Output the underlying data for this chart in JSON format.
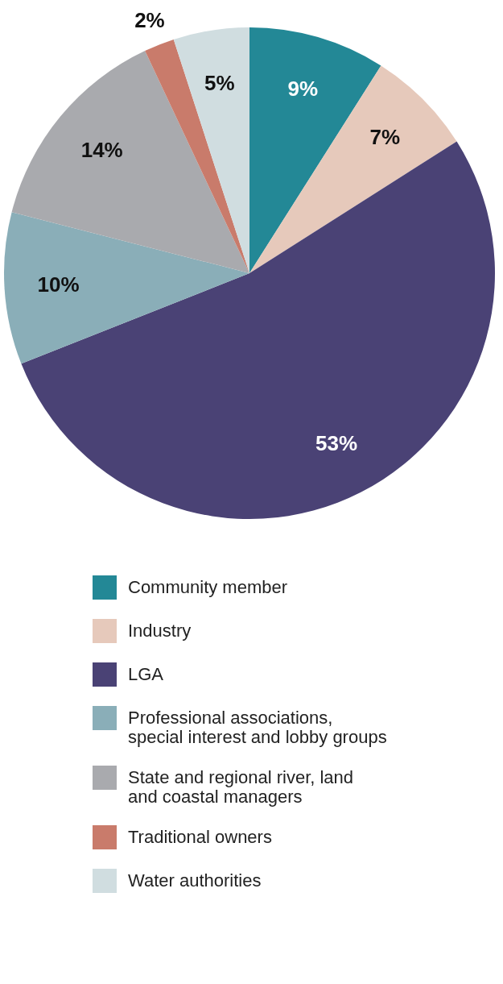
{
  "chart_data": {
    "type": "pie",
    "categories": [
      "Community member",
      "Industry",
      "LGA",
      "Professional associations, special interest and lobby groups",
      "State and regional river, land and coastal managers",
      "Traditional owners",
      "Water authorities"
    ],
    "values": [
      9,
      7,
      53,
      10,
      14,
      2,
      5
    ],
    "colors": [
      "#238896",
      "#e6c9bb",
      "#4a4275",
      "#8aaeb8",
      "#a9aaae",
      "#c97b6b",
      "#d0dde0"
    ],
    "value_labels": [
      "9%",
      "7%",
      "53%",
      "10%",
      "14%",
      "2%",
      "5%"
    ],
    "legend": "bottom"
  }
}
